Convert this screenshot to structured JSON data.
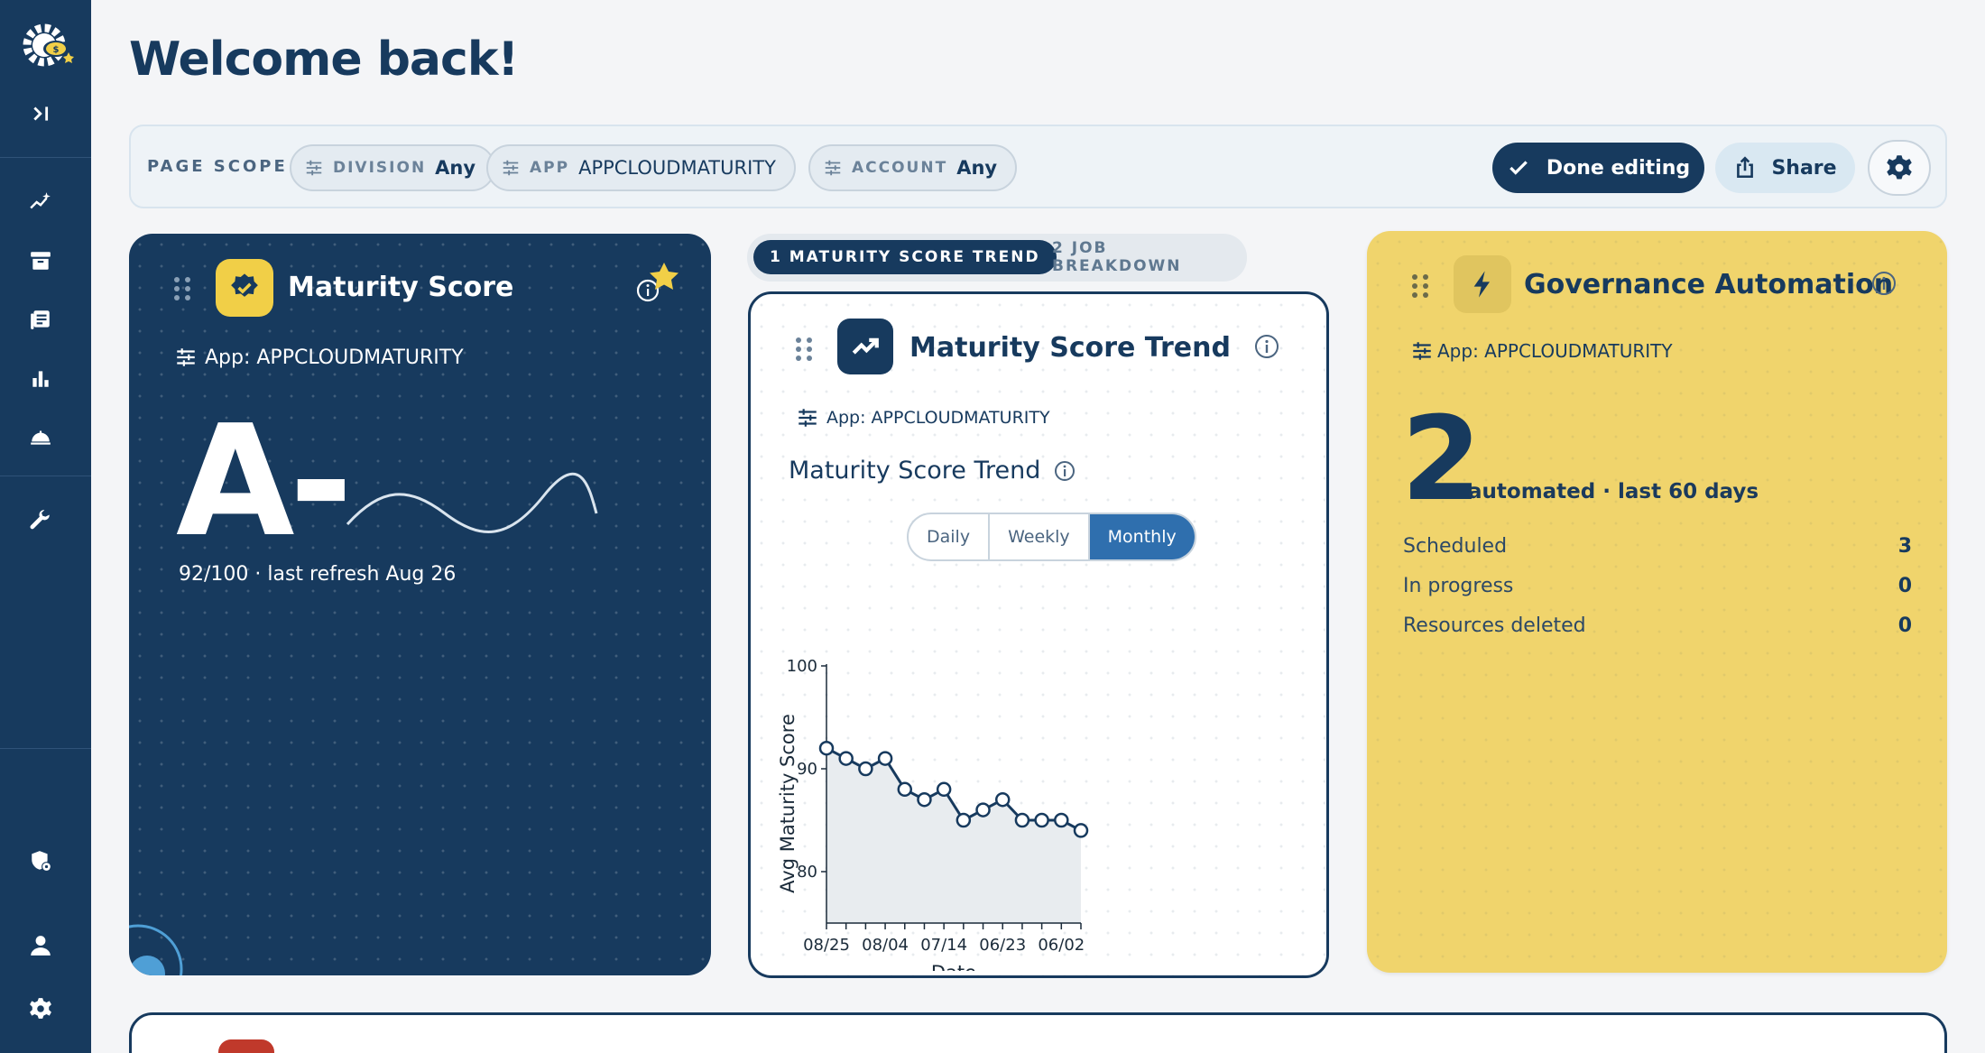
{
  "page": {
    "title": "Welcome back!"
  },
  "colors": {
    "navy": "#173a5e",
    "yellow": "#f0d46c",
    "badge_yellow": "#f1cf47",
    "active_blue": "#2f6fae",
    "bottom_badge": "#c0392b"
  },
  "sidebar": {
    "logo": "gear-cloud-logo-icon",
    "expand": "expand-sidebar-icon",
    "items": [
      {
        "name": "insights",
        "icon": "sparkle-chart-icon"
      },
      {
        "name": "archive",
        "icon": "archive-box-icon"
      },
      {
        "name": "reports",
        "icon": "document-list-icon"
      },
      {
        "name": "analytics",
        "icon": "bar-chart-icon"
      },
      {
        "name": "services",
        "icon": "service-bell-icon"
      },
      {
        "name": "tools",
        "icon": "wrench-icon"
      }
    ],
    "bottom": [
      {
        "name": "security",
        "icon": "shield-settings-icon"
      },
      {
        "name": "profile",
        "icon": "user-icon"
      },
      {
        "name": "settings",
        "icon": "gear-icon"
      }
    ]
  },
  "scope": {
    "label": "PAGE SCOPE",
    "chips": [
      {
        "key": "DIVISION",
        "value": "Any"
      },
      {
        "key": "APP",
        "value": "APPCLOUDMATURITY"
      },
      {
        "key": "ACCOUNT",
        "value": "Any"
      }
    ],
    "done_label": "Done editing",
    "share_label": "Share"
  },
  "score_card": {
    "title": "Maturity Score",
    "scope": "App: APPCLOUDMATURITY",
    "grade": "A-",
    "subtitle": "92/100 · last refresh Aug 26"
  },
  "trend_tabs": [
    {
      "label": "1  MATURITY SCORE TREND",
      "active": true
    },
    {
      "label": "2  JOB BREAKDOWN",
      "active": false
    }
  ],
  "trend_card": {
    "title": "Maturity Score Trend",
    "scope": "App: APPCLOUDMATURITY",
    "subtitle": "Maturity Score Trend",
    "periods": [
      "Daily",
      "Weekly",
      "Monthly"
    ],
    "active_period": "Monthly"
  },
  "chart_data": {
    "type": "area",
    "xlabel": "Date",
    "ylabel": "Avg Maturity Score",
    "ylim": [
      75,
      100
    ],
    "yticks": [
      80,
      90,
      100
    ],
    "x_tick_labels": [
      "08/25",
      "08/04",
      "07/14",
      "06/23",
      "06/02"
    ],
    "series": [
      {
        "values": [
          92,
          91,
          90,
          91,
          88,
          87,
          88,
          85,
          86,
          87,
          85,
          85,
          85,
          84
        ]
      }
    ],
    "grid": false,
    "legend": "none"
  },
  "gov_card": {
    "title": "Governance Automation",
    "scope": "App: APPCLOUDMATURITY",
    "count": "2",
    "count_label": "automated · last 60 days",
    "rows": [
      {
        "label": "Scheduled",
        "value": "3"
      },
      {
        "label": "In progress",
        "value": "0"
      },
      {
        "label": "Resources deleted",
        "value": "0"
      }
    ]
  }
}
